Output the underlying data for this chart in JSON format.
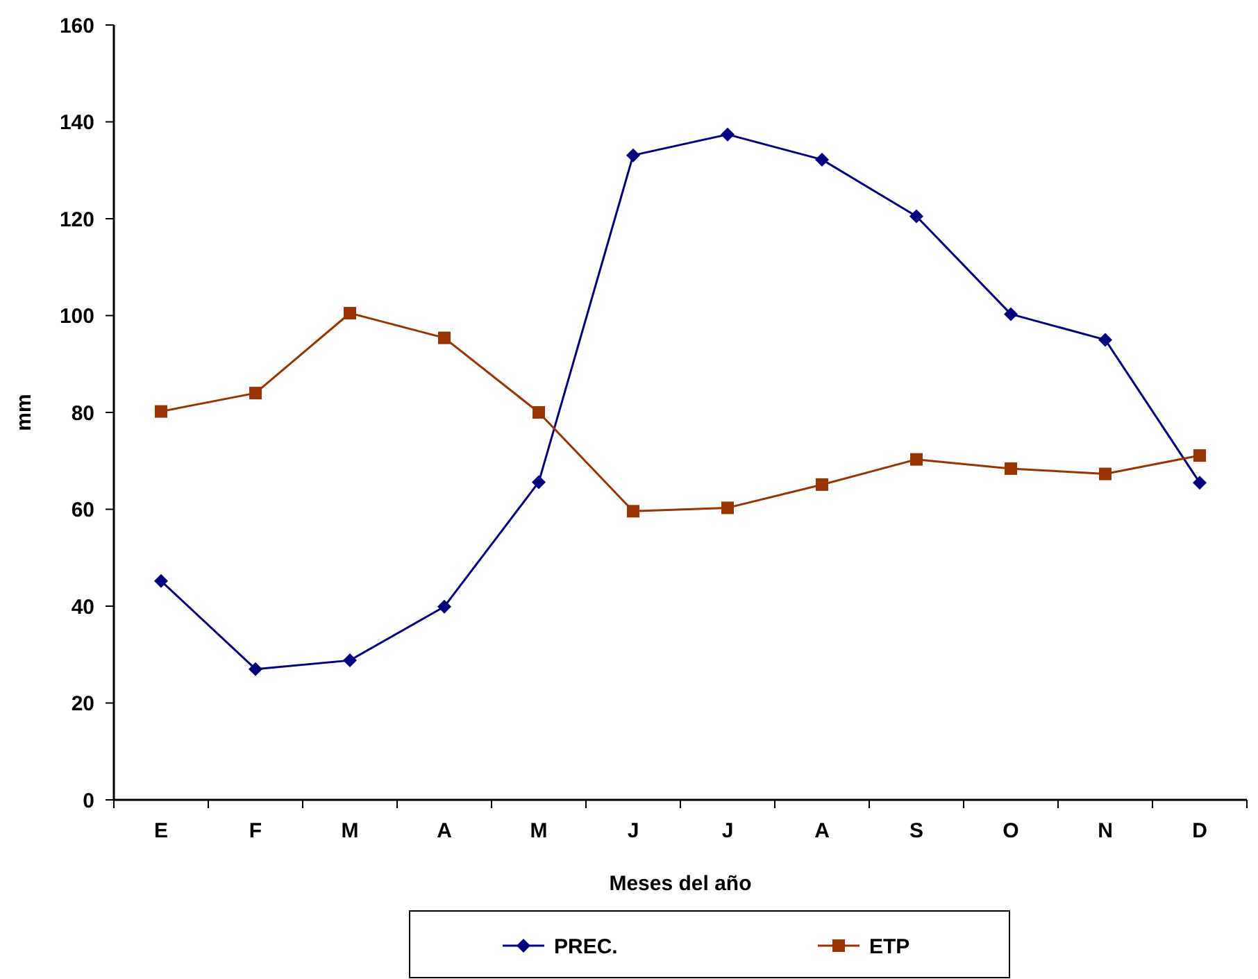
{
  "chart_data": {
    "type": "line",
    "xlabel": "Meses del año",
    "ylabel": "mm",
    "categories": [
      "E",
      "F",
      "M",
      "A",
      "M",
      "J",
      "J",
      "A",
      "S",
      "O",
      "N",
      "D"
    ],
    "series": [
      {
        "name": "PREC.",
        "color": "#000080",
        "marker": "diamond",
        "values": [
          45.2,
          27.0,
          28.8,
          39.9,
          65.6,
          133.1,
          137.4,
          132.2,
          120.5,
          100.3,
          95.0,
          65.5
        ]
      },
      {
        "name": "ETP",
        "color": "#993300",
        "marker": "square",
        "values": [
          80.2,
          84.0,
          100.5,
          95.4,
          80.0,
          59.6,
          60.3,
          65.1,
          70.3,
          68.4,
          67.3,
          71.1
        ]
      }
    ],
    "ylim": [
      0,
      160
    ],
    "yticks": [
      0,
      20,
      40,
      60,
      80,
      100,
      120,
      140,
      160
    ],
    "grid": false,
    "legend": "bottom",
    "line_style": "solid"
  }
}
